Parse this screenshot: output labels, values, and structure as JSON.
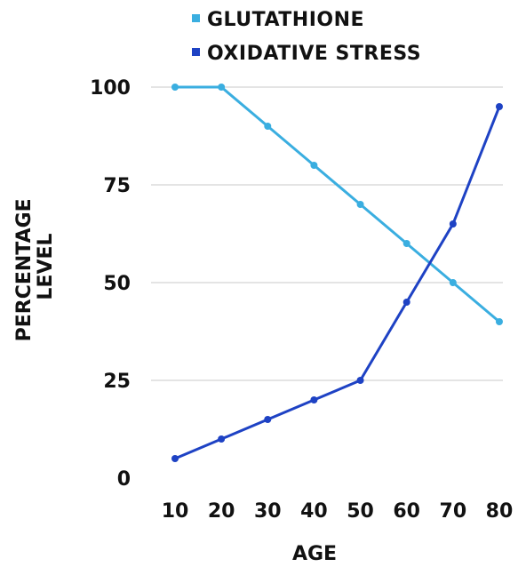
{
  "chart_data": {
    "type": "line",
    "title": "",
    "xlabel": "AGE",
    "ylabel": [
      "PERCENTAGE",
      "LEVEL"
    ],
    "categories": [
      10,
      20,
      30,
      40,
      50,
      60,
      70,
      80
    ],
    "ylim": [
      0,
      100
    ],
    "yticks": [
      0,
      25,
      50,
      75,
      100
    ],
    "grid": true,
    "legend_position": "top",
    "series": [
      {
        "name": "GLUTATHIONE",
        "color": "#3aaee0",
        "values": [
          100,
          100,
          90,
          80,
          70,
          60,
          50,
          40
        ]
      },
      {
        "name": "OXIDATIVE STRESS",
        "color": "#1e42c4",
        "values": [
          5,
          10,
          15,
          20,
          25,
          45,
          65,
          95
        ]
      }
    ]
  }
}
